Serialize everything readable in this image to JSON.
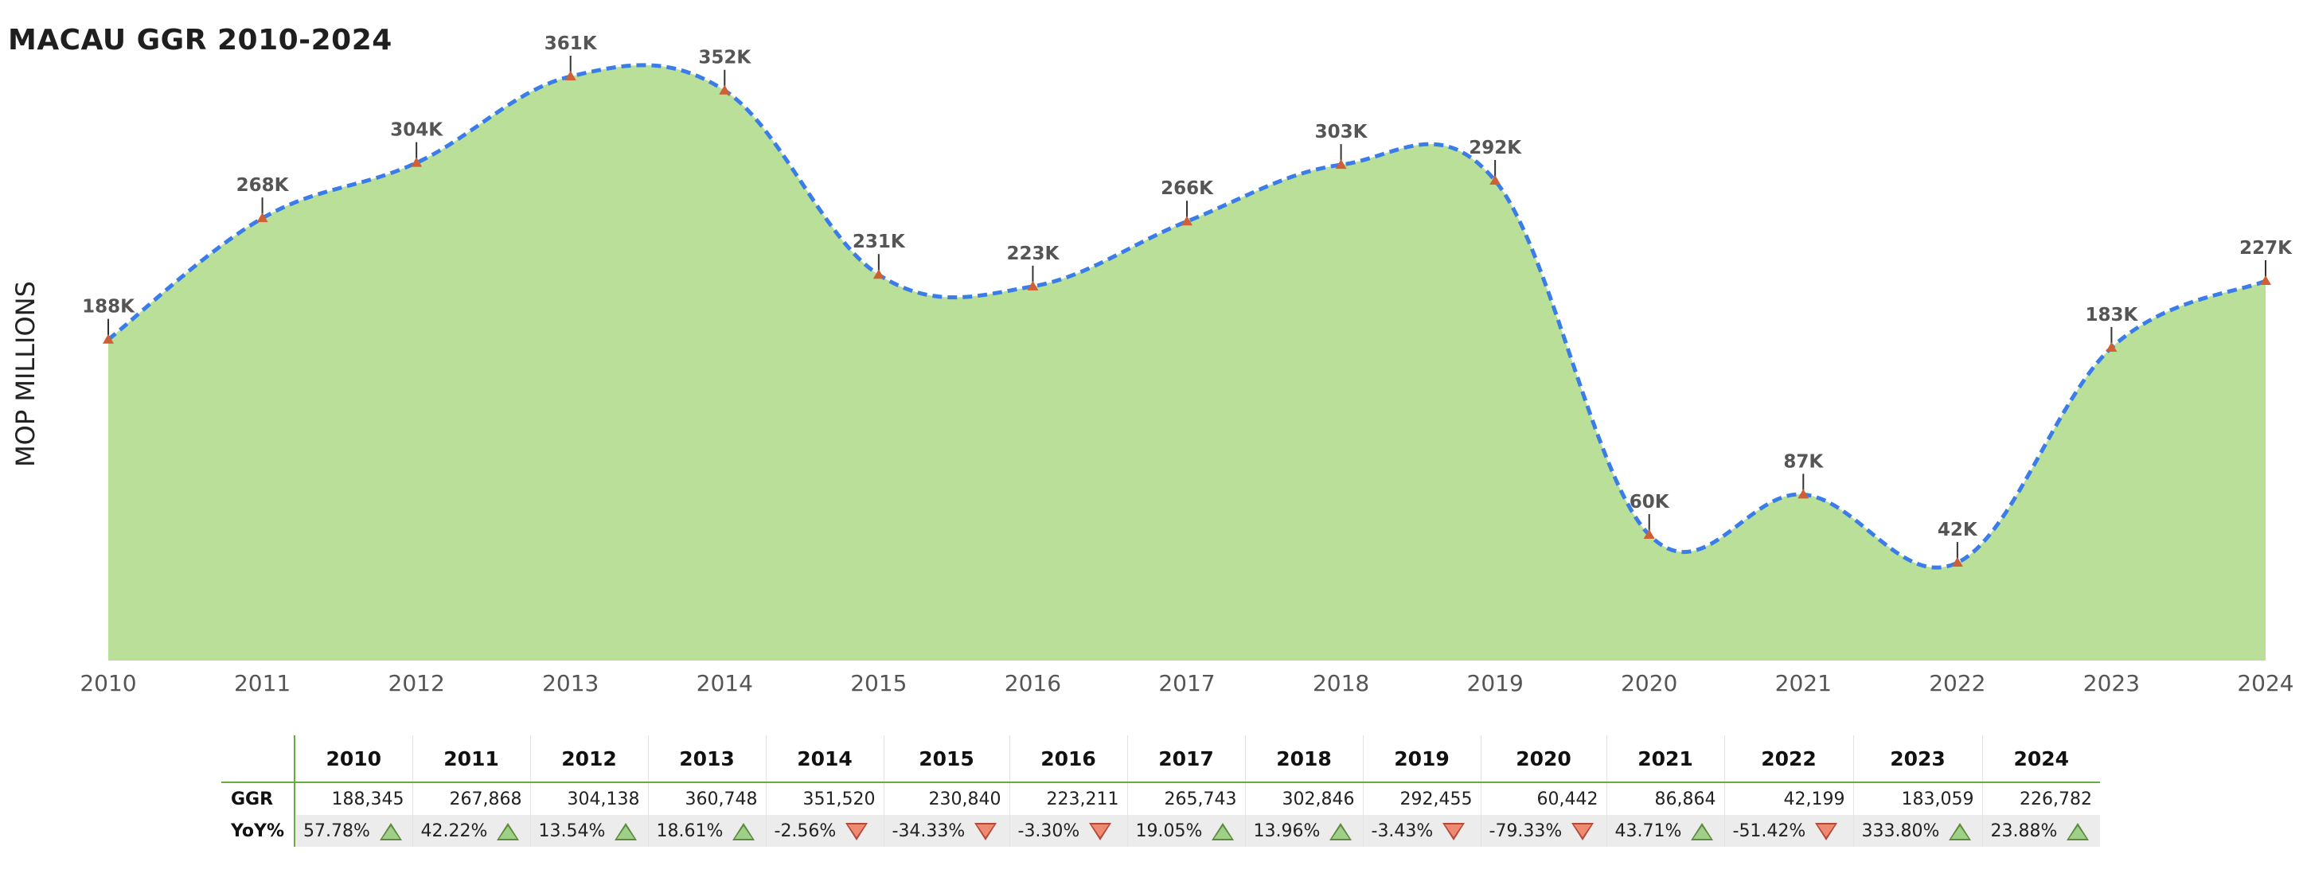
{
  "title": "MACAU GGR 2010-2024",
  "colors": {
    "area_fill": "#badf98",
    "line": "#3b7de8",
    "marker": "#cf5f34",
    "label": "#555555",
    "axis_text": "#555555",
    "up": "#9fd08a",
    "down": "#ee8a70",
    "table_rule": "#6aab3f"
  },
  "chart_data": {
    "type": "area",
    "title": "MACAU GGR 2010-2024",
    "xlabel": "",
    "ylabel": "MOP MILLIONS",
    "ylim": [
      0,
      380000
    ],
    "grid": false,
    "legend": "none",
    "line_style": "dashed",
    "categories": [
      "2010",
      "2011",
      "2012",
      "2013",
      "2014",
      "2015",
      "2016",
      "2017",
      "2018",
      "2019",
      "2020",
      "2021",
      "2022",
      "2023",
      "2024"
    ],
    "values": [
      188345,
      267868,
      304138,
      360748,
      351520,
      230840,
      223211,
      265743,
      302846,
      292455,
      60442,
      86864,
      42199,
      183059,
      226782
    ],
    "data_labels": [
      "188K",
      "268K",
      "304K",
      "361K",
      "352K",
      "231K",
      "223K",
      "266K",
      "303K",
      "292K",
      "60K",
      "87K",
      "42K",
      "183K",
      "227K"
    ]
  },
  "table": {
    "headers": [
      "",
      "2010",
      "2011",
      "2012",
      "2013",
      "2014",
      "2015",
      "2016",
      "2017",
      "2018",
      "2019",
      "2020",
      "2021",
      "2022",
      "2023",
      "2024"
    ],
    "rows": [
      {
        "label": "GGR",
        "cells": [
          "188,345",
          "267,868",
          "304,138",
          "360,748",
          "351,520",
          "230,840",
          "223,211",
          "265,743",
          "302,846",
          "292,455",
          "60,442",
          "86,864",
          "42,199",
          "183,059",
          "226,782"
        ]
      },
      {
        "label": "YoY%",
        "cells": [
          "57.78%",
          "42.22%",
          "13.54%",
          "18.61%",
          "-2.56%",
          "-34.33%",
          "-3.30%",
          "19.05%",
          "13.96%",
          "-3.43%",
          "-79.33%",
          "43.71%",
          "-51.42%",
          "333.80%",
          "23.88%"
        ],
        "icons": [
          "up-triangle-icon",
          "up-triangle-icon",
          "up-triangle-icon",
          "up-triangle-icon",
          "down-triangle-icon",
          "down-triangle-icon",
          "down-triangle-icon",
          "up-triangle-icon",
          "up-triangle-icon",
          "down-triangle-icon",
          "down-triangle-icon",
          "up-triangle-icon",
          "down-triangle-icon",
          "up-triangle-icon",
          "up-triangle-icon"
        ]
      }
    ]
  }
}
